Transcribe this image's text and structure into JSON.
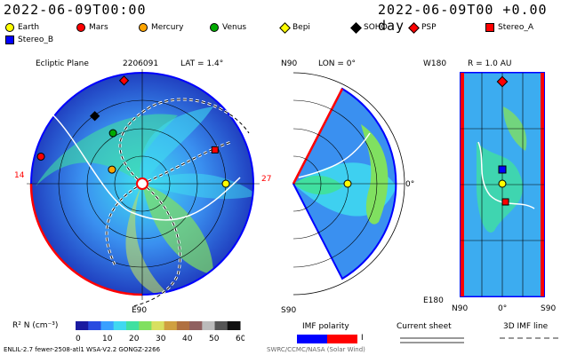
{
  "header": {
    "left_time": "2022-06-09T00:00",
    "right_time": "2022-06-09T00 +0.00 day"
  },
  "legend": [
    {
      "name": "Earth",
      "color": "#ffff00",
      "shape": "circle"
    },
    {
      "name": "Mars",
      "color": "#ff0000",
      "shape": "circle"
    },
    {
      "name": "Mercury",
      "color": "#ffa500",
      "shape": "circle"
    },
    {
      "name": "Venus",
      "color": "#00aa00",
      "shape": "circle"
    },
    {
      "name": "Bepi",
      "color": "#ffff00",
      "shape": "diamond"
    },
    {
      "name": "SOHO",
      "color": "#000000",
      "shape": "diamond"
    },
    {
      "name": "PSP",
      "color": "#ff0000",
      "shape": "diamond"
    },
    {
      "name": "Stereo_A",
      "color": "#ff0000",
      "shape": "square"
    },
    {
      "name": "Stereo_B",
      "color": "#0000ff",
      "shape": "square"
    }
  ],
  "panels": {
    "ecliptic": {
      "title": "Ecliptic Plane",
      "date": "2206091",
      "lat_label": "LAT = 1.4°",
      "bottom_label": "E90",
      "right_label": "27",
      "left_label": "14"
    },
    "meridional": {
      "top_left": "N90",
      "top_label": "LON = 0°",
      "right_label": "0°",
      "bottom_left": "S90"
    },
    "radial": {
      "title": "R = 1.0 AU",
      "top_left": "W180",
      "bottom_left": "E180",
      "bottom_n": "N90",
      "bottom_mid": "0°",
      "bottom_s": "S90"
    }
  },
  "colorbar": {
    "label": "R² N (cm⁻³)",
    "ticks": [
      "0",
      "10",
      "20",
      "30",
      "40",
      "50",
      "60"
    ]
  },
  "imf_legend": {
    "title": "IMF polarity",
    "sign": "I"
  },
  "current_sheet_legend": {
    "title": "Current sheet"
  },
  "imf_line_legend": {
    "title": "3D IMF line"
  },
  "footer": {
    "left": "ENLIL-2.7 fewer-2508-atl1 WSA-V2.2 GONGZ-2266",
    "right": "SWRC/CCMC/NASA (Solar Wind)"
  },
  "colors": {
    "cb": [
      "#1a1aa0",
      "#2a4be0",
      "#3aa0ff",
      "#40d8f0",
      "#40e0a0",
      "#80e060",
      "#d8e060",
      "#d0a040",
      "#b07040",
      "#906060",
      "#bbbbbb",
      "#555555",
      "#111111"
    ],
    "polarity_neg": "#0000ff",
    "polarity_pos": "#ff0000"
  },
  "chart_data": {
    "type": "heatmap",
    "title": "",
    "ecliptic_markers": [
      {
        "body": "Earth",
        "angle_deg": 0,
        "r_au": 1.0
      },
      {
        "body": "Mars",
        "angle_deg": 165,
        "r_au": 1.6
      },
      {
        "body": "Mercury",
        "angle_deg": 155,
        "r_au": 0.4
      },
      {
        "body": "Venus",
        "angle_deg": 120,
        "r_au": 0.7
      },
      {
        "body": "SOHO",
        "angle_deg": 125,
        "r_au": 0.99
      },
      {
        "body": "Stereo_A",
        "angle_deg": 25,
        "r_au": 0.96
      },
      {
        "body": "PSP",
        "angle_deg": 100,
        "r_au": 1.5
      }
    ],
    "colorbar_range": [
      0,
      60
    ]
  }
}
